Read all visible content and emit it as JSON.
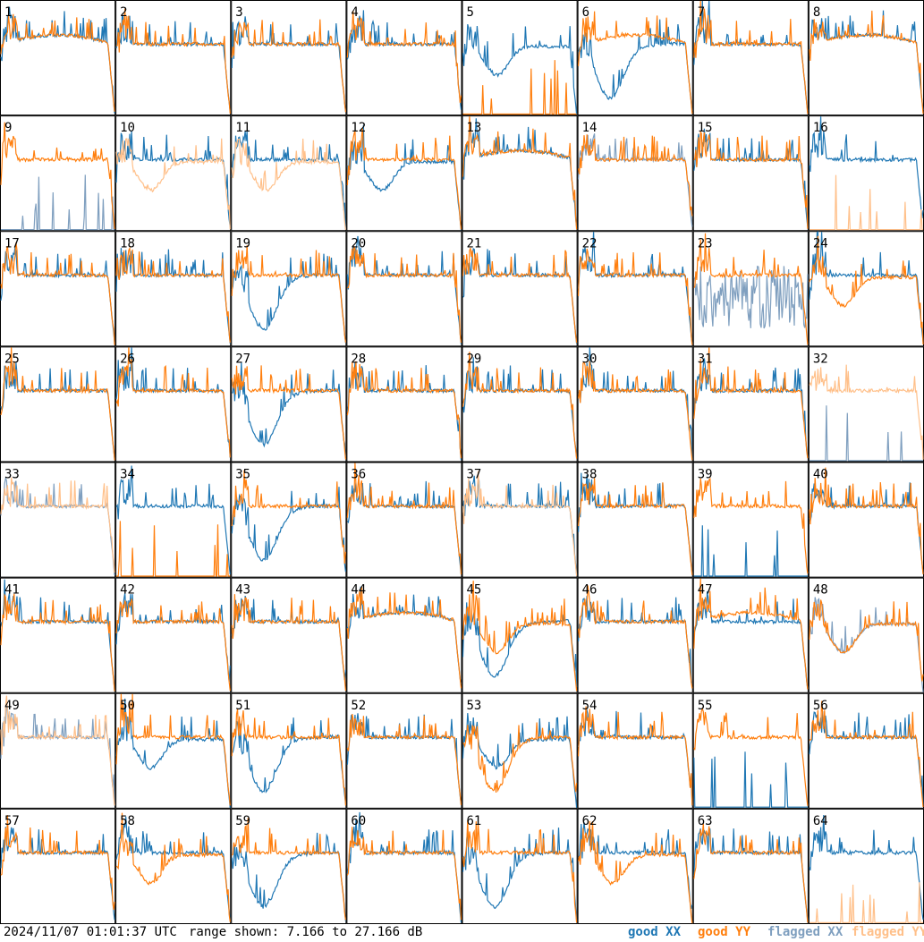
{
  "footer": {
    "timestamp": "2024/11/07 01:01:37 UTC",
    "range": "range shown: 7.166 to 27.166 dB"
  },
  "legend": [
    {
      "key": "goodXX",
      "label": "good XX",
      "color": "#1f77b4"
    },
    {
      "key": "goodYY",
      "label": "good YY",
      "color": "#ff7f0e"
    },
    {
      "key": "flaggedXX",
      "label": "flagged XX",
      "color": "#7f9fbf"
    },
    {
      "key": "flaggedYY",
      "label": "flagged YY",
      "color": "#ffc08a"
    }
  ],
  "chart_data": {
    "type": "line",
    "ylim": [
      7.166,
      27.166
    ],
    "yunit": "dB",
    "grid_shape": [
      8,
      8
    ],
    "panels": [
      {
        "id": "1",
        "xx": "good",
        "yy": "good",
        "xxShape": "dome",
        "yyShape": "dome"
      },
      {
        "id": "2",
        "xx": "good",
        "yy": "good",
        "xxShape": "flat",
        "yyShape": "flat"
      },
      {
        "id": "3",
        "xx": "good",
        "yy": "good",
        "xxShape": "flat",
        "yyShape": "flat"
      },
      {
        "id": "4",
        "xx": "good",
        "yy": "good",
        "xxShape": "flat",
        "yyShape": "flat"
      },
      {
        "id": "5",
        "xx": "good",
        "yy": "good",
        "xxShape": "dip",
        "yyShape": "dead"
      },
      {
        "id": "6",
        "xx": "good",
        "yy": "good",
        "xxShape": "deepdip",
        "yyShape": "dome"
      },
      {
        "id": "7",
        "xx": "good",
        "yy": "good",
        "xxShape": "flat",
        "yyShape": "flat"
      },
      {
        "id": "8",
        "xx": "good",
        "yy": "good",
        "xxShape": "dome",
        "yyShape": "dome"
      },
      {
        "id": "9",
        "xx": "flagged",
        "yy": "good",
        "xxShape": "dead",
        "yyShape": "flat"
      },
      {
        "id": "10",
        "xx": "good",
        "yy": "flagged",
        "xxShape": "flat",
        "yyShape": "dip"
      },
      {
        "id": "11",
        "xx": "good",
        "yy": "flagged",
        "xxShape": "flat",
        "yyShape": "dip"
      },
      {
        "id": "12",
        "xx": "good",
        "yy": "good",
        "xxShape": "dip",
        "yyShape": "flat"
      },
      {
        "id": "13",
        "xx": "good",
        "yy": "good",
        "xxShape": "dome",
        "yyShape": "dome"
      },
      {
        "id": "14",
        "xx": "flagged",
        "yy": "good",
        "xxShape": "flat",
        "yyShape": "flat"
      },
      {
        "id": "15",
        "xx": "good",
        "yy": "good",
        "xxShape": "flat",
        "yyShape": "flat"
      },
      {
        "id": "16",
        "xx": "good",
        "yy": "flagged",
        "xxShape": "flat",
        "yyShape": "dead"
      },
      {
        "id": "17",
        "xx": "good",
        "yy": "good",
        "xxShape": "flat",
        "yyShape": "flat"
      },
      {
        "id": "18",
        "xx": "good",
        "yy": "good",
        "xxShape": "flat",
        "yyShape": "flat"
      },
      {
        "id": "19",
        "xx": "good",
        "yy": "good",
        "xxShape": "deepdip",
        "yyShape": "flat"
      },
      {
        "id": "20",
        "xx": "good",
        "yy": "good",
        "xxShape": "flat",
        "yyShape": "flat"
      },
      {
        "id": "21",
        "xx": "good",
        "yy": "good",
        "xxShape": "flat",
        "yyShape": "flat"
      },
      {
        "id": "22",
        "xx": "good",
        "yy": "good",
        "xxShape": "flat",
        "yyShape": "flat"
      },
      {
        "id": "23",
        "xx": "flagged",
        "yy": "good",
        "xxShape": "noisy",
        "yyShape": "flat"
      },
      {
        "id": "24",
        "xx": "good",
        "yy": "good",
        "xxShape": "flat",
        "yyShape": "dip"
      },
      {
        "id": "25",
        "xx": "good",
        "yy": "good",
        "xxShape": "flat",
        "yyShape": "flat"
      },
      {
        "id": "26",
        "xx": "good",
        "yy": "good",
        "xxShape": "flat",
        "yyShape": "flat"
      },
      {
        "id": "27",
        "xx": "good",
        "yy": "good",
        "xxShape": "deepdip",
        "yyShape": "flat"
      },
      {
        "id": "28",
        "xx": "good",
        "yy": "good",
        "xxShape": "flat",
        "yyShape": "flat"
      },
      {
        "id": "29",
        "xx": "good",
        "yy": "good",
        "xxShape": "flat",
        "yyShape": "flat"
      },
      {
        "id": "30",
        "xx": "good",
        "yy": "good",
        "xxShape": "flat",
        "yyShape": "flat"
      },
      {
        "id": "31",
        "xx": "good",
        "yy": "good",
        "xxShape": "flat",
        "yyShape": "flat"
      },
      {
        "id": "32",
        "xx": "flagged",
        "yy": "flagged",
        "xxShape": "dead",
        "yyShape": "flat"
      },
      {
        "id": "33",
        "xx": "flagged",
        "yy": "flagged",
        "xxShape": "flat",
        "yyShape": "flat"
      },
      {
        "id": "34",
        "xx": "good",
        "yy": "good",
        "xxShape": "flat",
        "yyShape": "dead"
      },
      {
        "id": "35",
        "xx": "good",
        "yy": "good",
        "xxShape": "deepdip",
        "yyShape": "flat"
      },
      {
        "id": "36",
        "xx": "good",
        "yy": "good",
        "xxShape": "flat",
        "yyShape": "flat"
      },
      {
        "id": "37",
        "xx": "good",
        "yy": "flagged",
        "xxShape": "flat",
        "yyShape": "flat"
      },
      {
        "id": "38",
        "xx": "good",
        "yy": "good",
        "xxShape": "flat",
        "yyShape": "flat"
      },
      {
        "id": "39",
        "xx": "good",
        "yy": "good",
        "xxShape": "dead",
        "yyShape": "flat"
      },
      {
        "id": "40",
        "xx": "good",
        "yy": "good",
        "xxShape": "flat",
        "yyShape": "flat"
      },
      {
        "id": "41",
        "xx": "good",
        "yy": "good",
        "xxShape": "flat",
        "yyShape": "flat"
      },
      {
        "id": "42",
        "xx": "good",
        "yy": "good",
        "xxShape": "flat",
        "yyShape": "flat"
      },
      {
        "id": "43",
        "xx": "good",
        "yy": "good",
        "xxShape": "flat",
        "yyShape": "flat"
      },
      {
        "id": "44",
        "xx": "good",
        "yy": "good",
        "xxShape": "dome",
        "yyShape": "dome"
      },
      {
        "id": "45",
        "xx": "good",
        "yy": "good",
        "xxShape": "deepdip",
        "yyShape": "dip"
      },
      {
        "id": "46",
        "xx": "good",
        "yy": "good",
        "xxShape": "flat",
        "yyShape": "flat"
      },
      {
        "id": "47",
        "xx": "good",
        "yy": "good",
        "xxShape": "flat",
        "yyShape": "dome"
      },
      {
        "id": "48",
        "xx": "flagged",
        "yy": "good",
        "xxShape": "dip",
        "yyShape": "dip"
      },
      {
        "id": "49",
        "xx": "flagged",
        "yy": "flagged",
        "xxShape": "flat",
        "yyShape": "flat"
      },
      {
        "id": "50",
        "xx": "good",
        "yy": "good",
        "xxShape": "dip",
        "yyShape": "flat"
      },
      {
        "id": "51",
        "xx": "good",
        "yy": "good",
        "xxShape": "deepdip",
        "yyShape": "flat"
      },
      {
        "id": "52",
        "xx": "good",
        "yy": "good",
        "xxShape": "flat",
        "yyShape": "flat"
      },
      {
        "id": "53",
        "xx": "good",
        "yy": "good",
        "xxShape": "dip",
        "yyShape": "deepdip"
      },
      {
        "id": "54",
        "xx": "good",
        "yy": "good",
        "xxShape": "flat",
        "yyShape": "flat"
      },
      {
        "id": "55",
        "xx": "good",
        "yy": "good",
        "xxShape": "dead",
        "yyShape": "flat"
      },
      {
        "id": "56",
        "xx": "good",
        "yy": "good",
        "xxShape": "flat",
        "yyShape": "flat"
      },
      {
        "id": "57",
        "xx": "good",
        "yy": "good",
        "xxShape": "flat",
        "yyShape": "flat"
      },
      {
        "id": "58",
        "xx": "good",
        "yy": "good",
        "xxShape": "flat",
        "yyShape": "dip"
      },
      {
        "id": "59",
        "xx": "good",
        "yy": "good",
        "xxShape": "deepdip",
        "yyShape": "flat"
      },
      {
        "id": "60",
        "xx": "good",
        "yy": "good",
        "xxShape": "flat",
        "yyShape": "flat"
      },
      {
        "id": "61",
        "xx": "good",
        "yy": "good",
        "xxShape": "deepdip",
        "yyShape": "flat"
      },
      {
        "id": "62",
        "xx": "good",
        "yy": "good",
        "xxShape": "flat",
        "yyShape": "dip"
      },
      {
        "id": "63",
        "xx": "good",
        "yy": "good",
        "xxShape": "flat",
        "yyShape": "flat"
      },
      {
        "id": "64",
        "xx": "good",
        "yy": "flagged",
        "xxShape": "flat",
        "yyShape": "dead"
      }
    ]
  }
}
